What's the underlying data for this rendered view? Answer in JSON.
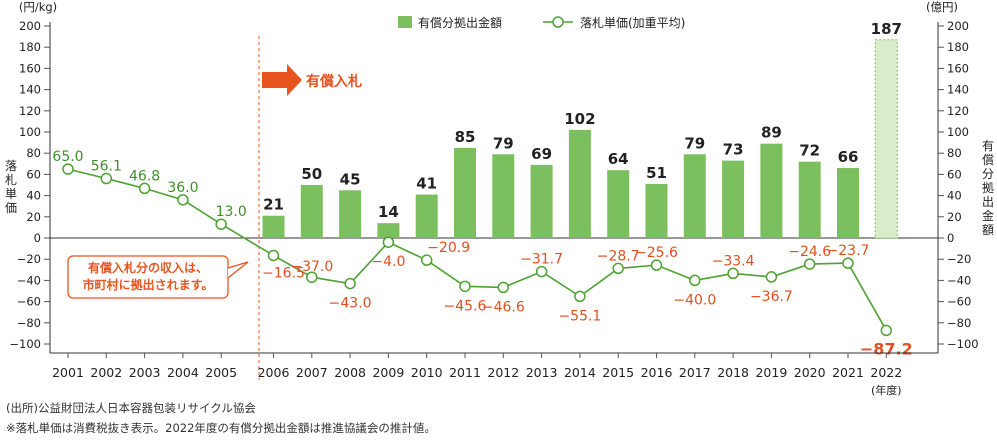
{
  "chart_data": {
    "type": "bar+line",
    "years": [
      "2001",
      "2002",
      "2003",
      "2004",
      "2005",
      "2006",
      "2007",
      "2008",
      "2009",
      "2010",
      "2011",
      "2012",
      "2013",
      "2014",
      "2015",
      "2016",
      "2017",
      "2018",
      "2019",
      "2020",
      "2021",
      "2022"
    ],
    "bar_series": {
      "name": "有償分拠出金額",
      "color": "#7cbf5e",
      "estimate_fill": "#d9edcd",
      "values": [
        null,
        null,
        null,
        null,
        null,
        21,
        50,
        45,
        14,
        41,
        85,
        79,
        69,
        102,
        64,
        51,
        79,
        73,
        89,
        72,
        66,
        187
      ]
    },
    "line_series": {
      "name": "落札単価(加重平均)",
      "color": "#4ea233",
      "values": [
        65.0,
        56.1,
        46.8,
        36.0,
        13.0,
        -16.5,
        -37.0,
        -43.0,
        -4.0,
        -20.9,
        -45.6,
        -46.6,
        -31.7,
        -55.1,
        -28.7,
        -25.6,
        -40.0,
        -33.4,
        -36.7,
        -24.6,
        -23.7,
        -87.2
      ],
      "labels": [
        "65.0",
        "56.1",
        "46.8",
        "36.0",
        "13.0",
        "−16.5",
        "−37.0",
        "−43.0",
        "−4.0",
        "−20.9",
        "−45.6",
        "−46.6",
        "−31.7",
        "−55.1",
        "−28.7",
        "−25.6",
        "−40.0",
        "−33.4",
        "−36.7",
        "−24.6",
        "−23.7",
        "−87.2"
      ]
    },
    "positive_label_color": "#3f8f2a",
    "negative_label_color": "#e0501e",
    "ylim": [
      -100,
      200
    ],
    "yticks": [
      -100,
      -80,
      -60,
      -40,
      -20,
      0,
      20,
      40,
      60,
      80,
      100,
      120,
      140,
      160,
      180,
      200
    ],
    "ytick_labels": [
      "−100",
      "−80",
      "−60",
      "−40",
      "−20",
      "0",
      "20",
      "40",
      "60",
      "80",
      "100",
      "120",
      "140",
      "160",
      "180",
      "200"
    ],
    "y_left_unit": "(円/kg)",
    "y_left_label": "落札単価",
    "y_right_unit": "(億円)",
    "y_right_label": "有償分拠出金額",
    "x_unit": "(年度)",
    "legend_position": "top-center",
    "legend": {
      "bar_label": "有償分拠出金額",
      "line_label": "落札単価(加重平均)"
    },
    "annotations": {
      "paid_start_label": "有償入札",
      "callout_text": "有償入札分の収入は、\n市町村に拠出されます。",
      "accent_color": "#e8541e"
    }
  },
  "notes": {
    "source": "(出所)公益財団法人日本容器包装リサイクル協会",
    "footnote": "※落札単価は消費税抜き表示。2022年度の有償分拠出金額は推進協議会の推計値。"
  }
}
